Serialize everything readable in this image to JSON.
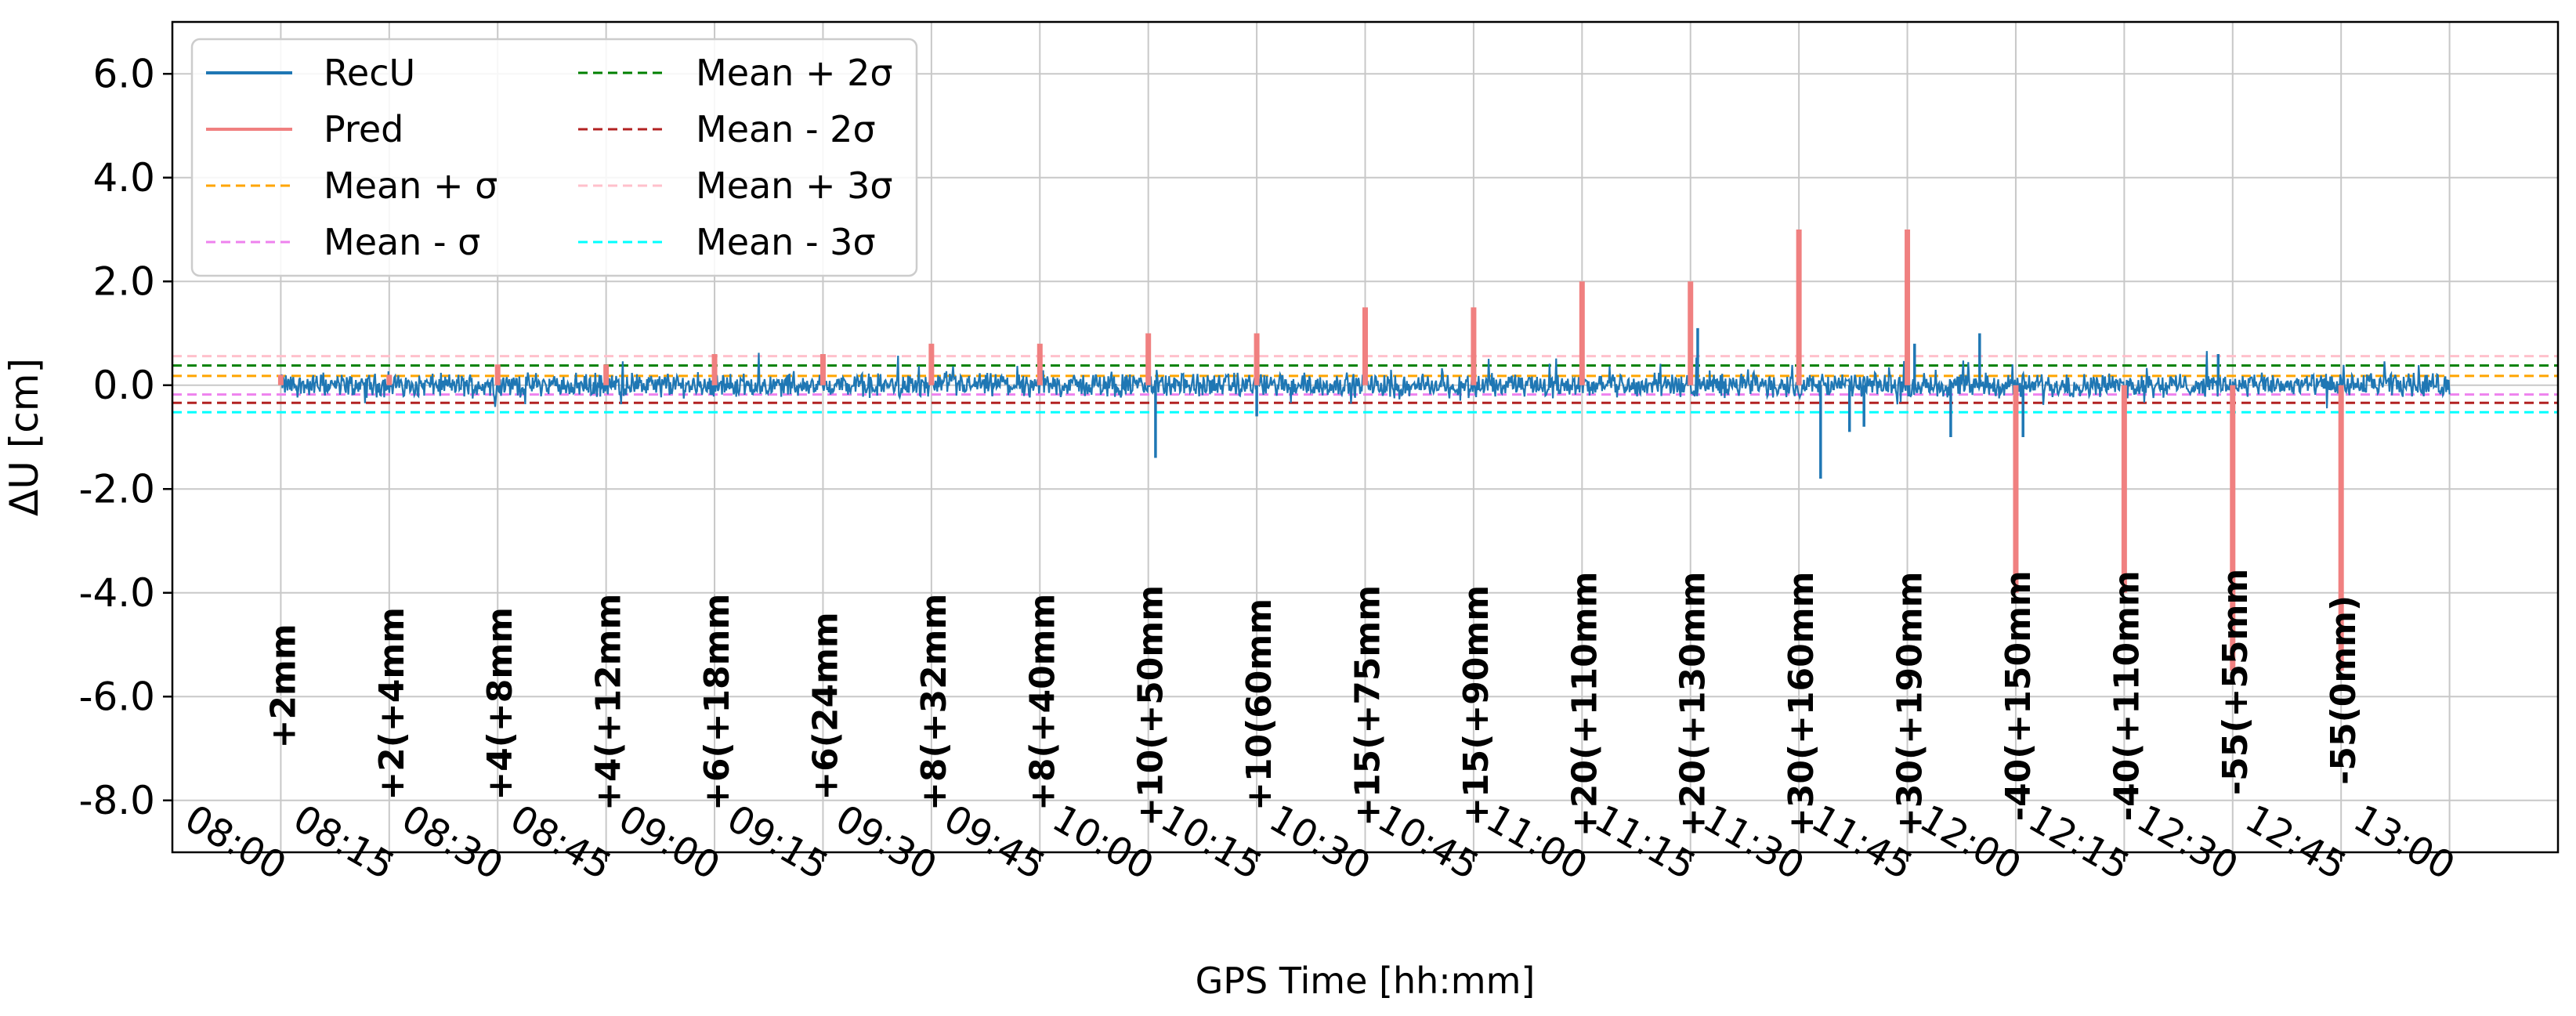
{
  "chart_data": {
    "type": "line",
    "title": "",
    "xlabel": "GPS Time [hh:mm]",
    "ylabel": "ΔU [cm]",
    "xlim": [
      "07:45",
      "13:15"
    ],
    "ylim": [
      -9.0,
      7.0
    ],
    "x_ticks": [
      "08:00",
      "08:15",
      "08:30",
      "08:45",
      "09:00",
      "09:15",
      "09:30",
      "09:45",
      "10:00",
      "10:15",
      "10:30",
      "10:45",
      "11:00",
      "11:15",
      "11:30",
      "11:45",
      "12:00",
      "12:15",
      "12:30",
      "12:45",
      "13:00"
    ],
    "y_ticks": [
      "6.0",
      "4.0",
      "2.0",
      "0.0",
      "-2.0",
      "-4.0",
      "-6.0",
      "-8.0"
    ],
    "grid": true,
    "legend_position": "top-left",
    "legend": [
      {
        "name": "RecU",
        "color": "#1f77b4",
        "style": "solid"
      },
      {
        "name": "Pred",
        "color": "#f08080",
        "style": "solid"
      },
      {
        "name": "Mean + σ",
        "color": "#ffa500",
        "style": "dashed"
      },
      {
        "name": "Mean - σ",
        "color": "#ee82ee",
        "style": "dashed"
      },
      {
        "name": "Mean + 2σ",
        "color": "#008000",
        "style": "dashed"
      },
      {
        "name": "Mean - 2σ",
        "color": "#b22222",
        "style": "dashed"
      },
      {
        "name": "Mean + 3σ",
        "color": "#ffc0cb",
        "style": "dashed"
      },
      {
        "name": "Mean - 3σ",
        "color": "#00ffff",
        "style": "dashed"
      }
    ],
    "threshold_lines": [
      {
        "name": "Mean + σ",
        "y": 0.18
      },
      {
        "name": "Mean - σ",
        "y": -0.18
      },
      {
        "name": "Mean + 2σ",
        "y": 0.38
      },
      {
        "name": "Mean - 2σ",
        "y": -0.34
      },
      {
        "name": "Mean + 3σ",
        "y": 0.56
      },
      {
        "name": "Mean - 3σ",
        "y": -0.52
      }
    ],
    "pred_spikes": [
      {
        "time": "08:00",
        "value": 0.2
      },
      {
        "time": "08:15",
        "value": 0.2
      },
      {
        "time": "08:30",
        "value": 0.4
      },
      {
        "time": "08:45",
        "value": 0.4
      },
      {
        "time": "09:00",
        "value": 0.6
      },
      {
        "time": "09:15",
        "value": 0.6
      },
      {
        "time": "09:30",
        "value": 0.8
      },
      {
        "time": "09:45",
        "value": 0.8
      },
      {
        "time": "10:00",
        "value": 1.0
      },
      {
        "time": "10:15",
        "value": 1.0
      },
      {
        "time": "10:30",
        "value": 1.5
      },
      {
        "time": "10:45",
        "value": 1.5
      },
      {
        "time": "11:00",
        "value": 2.0
      },
      {
        "time": "11:15",
        "value": 2.0
      },
      {
        "time": "11:30",
        "value": 3.0
      },
      {
        "time": "11:45",
        "value": 3.0
      },
      {
        "time": "12:00",
        "value": -4.0
      },
      {
        "time": "12:15",
        "value": -4.0
      },
      {
        "time": "12:30",
        "value": -5.5
      },
      {
        "time": "12:45",
        "value": -5.5
      }
    ],
    "recu_features": [
      {
        "time": "10:01",
        "value": -1.4
      },
      {
        "time": "10:15",
        "value": -0.6
      },
      {
        "time": "11:16",
        "value": 1.1
      },
      {
        "time": "11:30",
        "value": 0.9
      },
      {
        "time": "11:33",
        "value": -1.8
      },
      {
        "time": "11:37",
        "value": -0.9
      },
      {
        "time": "11:39",
        "value": -0.8
      },
      {
        "time": "11:46",
        "value": 0.8
      },
      {
        "time": "11:51",
        "value": -1.0
      },
      {
        "time": "11:55",
        "value": 1.0
      },
      {
        "time": "12:00",
        "value": -0.9
      },
      {
        "time": "12:01",
        "value": -1.0
      },
      {
        "time": "12:15",
        "value": -1.2
      },
      {
        "time": "12:28",
        "value": 0.6
      },
      {
        "time": "12:30",
        "value": -0.9
      },
      {
        "time": "12:45",
        "value": -1.3
      }
    ],
    "annotations": [
      {
        "time": "08:00",
        "text": "+2mm",
        "y": -7.0
      },
      {
        "time": "08:15",
        "text": "+2(+4mm",
        "y": -8.0
      },
      {
        "time": "08:30",
        "text": "+4(+8mm",
        "y": -8.0
      },
      {
        "time": "08:45",
        "text": "+4(+12mm",
        "y": -8.2
      },
      {
        "time": "09:00",
        "text": "+6(+18mm",
        "y": -8.2
      },
      {
        "time": "09:15",
        "text": "+6(24mm",
        "y": -8.0
      },
      {
        "time": "09:30",
        "text": "+8(+32mm",
        "y": -8.2
      },
      {
        "time": "09:45",
        "text": "+8(+40mm",
        "y": -8.2
      },
      {
        "time": "10:00",
        "text": "+10(+50mm",
        "y": -8.5
      },
      {
        "time": "10:15",
        "text": "+10(60mm",
        "y": -8.2
      },
      {
        "time": "10:30",
        "text": "+15(+75mm",
        "y": -8.5
      },
      {
        "time": "10:45",
        "text": "+15(+90mm",
        "y": -8.5
      },
      {
        "time": "11:00",
        "text": "+20(+110mm",
        "y": -8.7
      },
      {
        "time": "11:15",
        "text": "+20(+130mm",
        "y": -8.7
      },
      {
        "time": "11:30",
        "text": "+30(+160mm",
        "y": -8.7
      },
      {
        "time": "11:45",
        "text": "+30(+190mm",
        "y": -8.7
      },
      {
        "time": "12:00",
        "text": "-40(+150mm",
        "y": -8.4
      },
      {
        "time": "12:15",
        "text": "-40(+110mm",
        "y": -8.4
      },
      {
        "time": "12:30",
        "text": "-55(+55mm",
        "y": -7.9
      },
      {
        "time": "12:45",
        "text": "-55(0mm)",
        "y": -7.7
      }
    ]
  }
}
